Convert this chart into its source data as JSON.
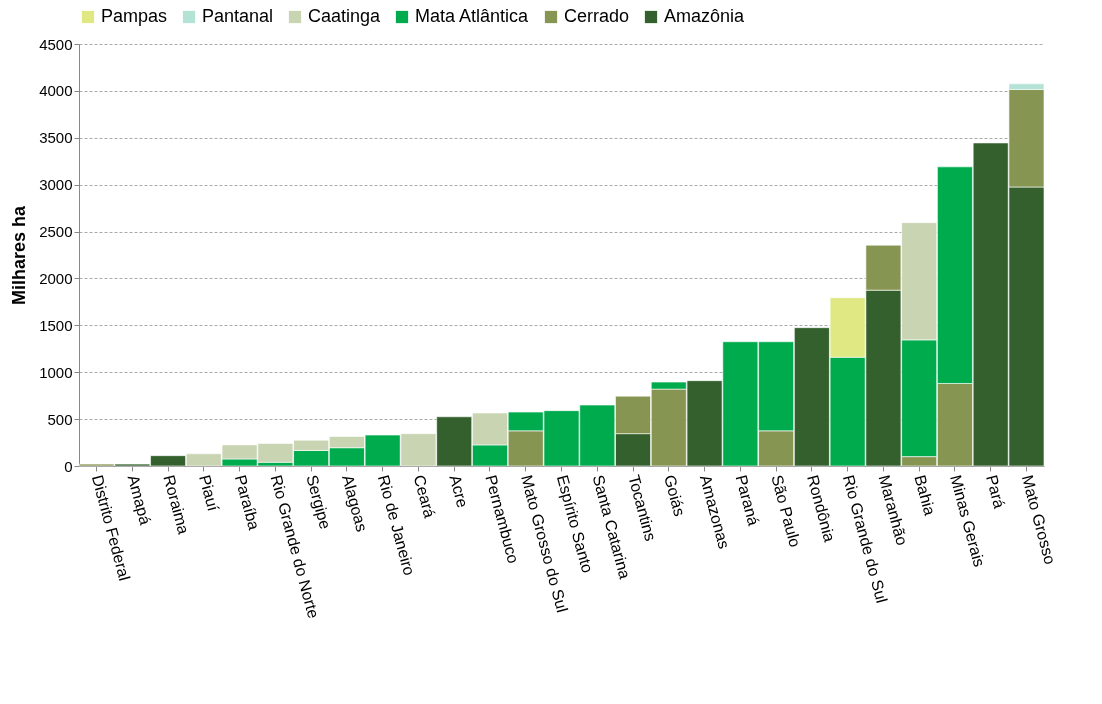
{
  "chart_data": {
    "type": "bar",
    "stacked": true,
    "ylabel": "Milhares ha",
    "categories": [
      "Distrito Federal",
      "Amapá",
      "Roraima",
      "Piauí",
      "Paraíba",
      "Rio Grande do Norte",
      "Sergipe",
      "Alagoas",
      "Rio de Janeiro",
      "Ceará",
      "Acre",
      "Pernambuco",
      "Mato Grosso do Sul",
      "Espírito Santo",
      "Santa Catarina",
      "Tocantins",
      "Goiás",
      "Amazonas",
      "Paraná",
      "São Paulo",
      "Rondônia",
      "Rio Grande do Sul",
      "Maranhão",
      "Bahia",
      "Minas Gerais",
      "Pará",
      "Mato Grosso"
    ],
    "series": [
      {
        "name": "Amazônia",
        "color": "#33602c",
        "values": [
          null,
          20,
          110,
          null,
          null,
          null,
          null,
          null,
          null,
          null,
          525,
          null,
          null,
          null,
          null,
          345,
          null,
          910,
          null,
          null,
          1475,
          null,
          1875,
          null,
          null,
          3445,
          2975
        ]
      },
      {
        "name": "Cerrado",
        "color": "#879552",
        "values": [
          20,
          null,
          null,
          null,
          null,
          null,
          null,
          null,
          null,
          null,
          null,
          null,
          375,
          null,
          null,
          400,
          820,
          null,
          null,
          375,
          null,
          null,
          480,
          100,
          880,
          null,
          1040
        ]
      },
      {
        "name": "Mata Atlântica",
        "color": "#00ab4e",
        "values": [
          null,
          null,
          null,
          null,
          75,
          40,
          165,
          195,
          330,
          null,
          null,
          225,
          200,
          590,
          650,
          null,
          75,
          null,
          1325,
          950,
          null,
          1160,
          null,
          1245,
          2310,
          null,
          null
        ]
      },
      {
        "name": "Caatinga",
        "color": "#c9d4b3",
        "values": [
          null,
          null,
          null,
          130,
          150,
          200,
          110,
          120,
          null,
          345,
          null,
          340,
          null,
          null,
          null,
          null,
          null,
          null,
          null,
          null,
          null,
          null,
          null,
          1250,
          null,
          null,
          null
        ]
      },
      {
        "name": "Pantanal",
        "color": "#b3e3d5",
        "values": [
          null,
          null,
          null,
          null,
          null,
          null,
          null,
          null,
          null,
          null,
          null,
          null,
          null,
          null,
          null,
          null,
          null,
          null,
          null,
          null,
          null,
          null,
          null,
          null,
          null,
          null,
          60
        ]
      },
      {
        "name": "Pampas",
        "color": "#dfe882",
        "values": [
          null,
          null,
          null,
          null,
          null,
          null,
          null,
          null,
          null,
          null,
          null,
          null,
          null,
          null,
          null,
          null,
          null,
          null,
          null,
          null,
          null,
          635,
          null,
          null,
          null,
          null,
          null
        ]
      }
    ],
    "ylim": [
      0,
      4500
    ],
    "yticks": [
      0,
      500,
      1000,
      1500,
      2000,
      2500,
      3000,
      3500,
      4000,
      4500
    ],
    "grid": "y",
    "legend": "top"
  }
}
